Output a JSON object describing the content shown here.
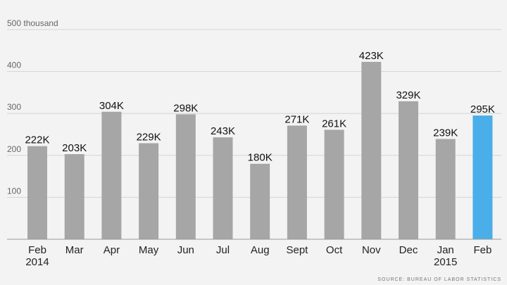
{
  "chart_data": {
    "type": "bar",
    "categories": [
      "Feb\n2014",
      "Mar",
      "Apr",
      "May",
      "Jun",
      "Jul",
      "Aug",
      "Sept",
      "Oct",
      "Nov",
      "Dec",
      "Jan\n2015",
      "Feb"
    ],
    "values": [
      222,
      203,
      304,
      229,
      298,
      243,
      180,
      271,
      261,
      423,
      329,
      239,
      295
    ],
    "data_labels": [
      "222K",
      "203K",
      "304K",
      "229K",
      "298K",
      "243K",
      "180K",
      "271K",
      "261K",
      "423K",
      "329K",
      "239K",
      "295K"
    ],
    "y_ticks": [
      100,
      200,
      300,
      400,
      500
    ],
    "y_tick_labels": [
      "100",
      "200",
      "300",
      "400",
      "500 thousand"
    ],
    "ylim": [
      0,
      500
    ],
    "grid": true,
    "title": "",
    "xlabel": "",
    "ylabel": "",
    "source": "SOURCE: BUREAU OF LABOR STATISTICS",
    "colors": {
      "bar": "#a6a6a6",
      "highlight": "#4aaee8",
      "grid": "#d4d4d4",
      "axis": "#999999",
      "background": "#f3f3f3"
    },
    "highlight_index": 12
  }
}
